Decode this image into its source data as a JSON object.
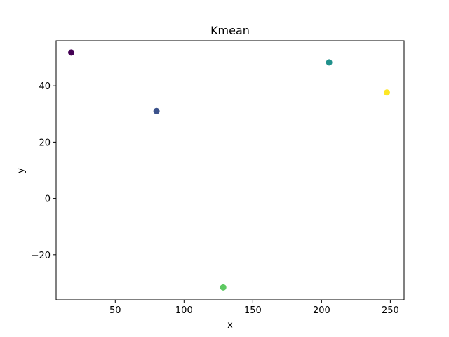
{
  "chart_data": {
    "type": "scatter",
    "title": "Kmean",
    "xlabel": "x",
    "ylabel": "y",
    "xlim": [
      7,
      260
    ],
    "ylim": [
      -36,
      56
    ],
    "xticks": [
      50,
      100,
      150,
      200,
      250
    ],
    "yticks": [
      -20,
      0,
      20,
      40
    ],
    "xtick_labels": [
      "50",
      "100",
      "150",
      "200",
      "250"
    ],
    "ytick_labels": [
      "−20",
      "0",
      "20",
      "40"
    ],
    "grid": false,
    "legend": "none",
    "points": [
      {
        "x": 18,
        "y": 51.8,
        "color": "#440154"
      },
      {
        "x": 80,
        "y": 31.0,
        "color": "#3b528b"
      },
      {
        "x": 205.5,
        "y": 48.3,
        "color": "#21918c"
      },
      {
        "x": 128.5,
        "y": -31.6,
        "color": "#5ec962"
      },
      {
        "x": 247.5,
        "y": 37.6,
        "color": "#fde725"
      }
    ]
  }
}
